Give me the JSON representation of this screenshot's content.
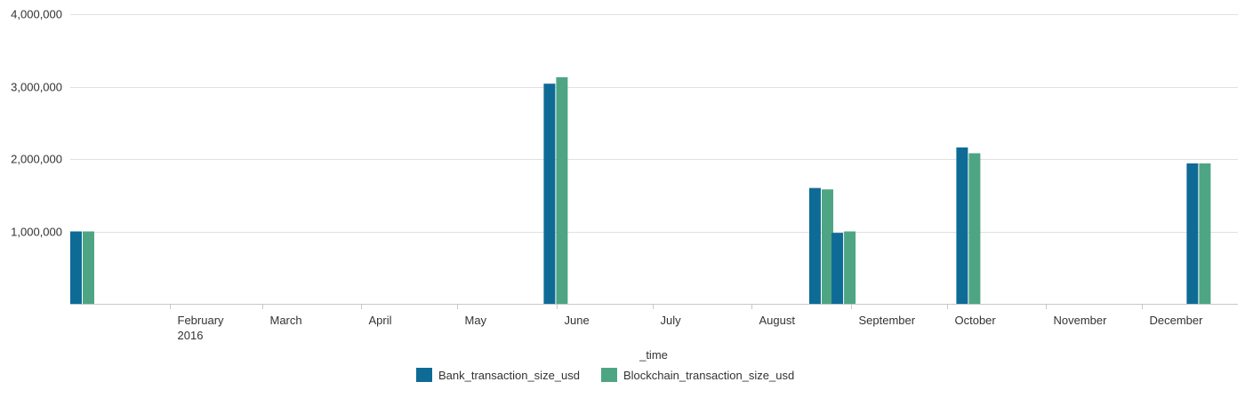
{
  "chart_data": {
    "type": "bar",
    "title": "",
    "xlabel": "_time",
    "ylabel": "",
    "ylim": [
      0,
      4000000
    ],
    "y_ticks": [
      {
        "value": 1000000,
        "label": "1,000,000"
      },
      {
        "value": 2000000,
        "label": "2,000,000"
      },
      {
        "value": 3000000,
        "label": "3,000,000"
      },
      {
        "value": 4000000,
        "label": "4,000,000"
      }
    ],
    "x_range": [
      "2016-01-01",
      "2016-12-31"
    ],
    "x_ticks": [
      {
        "date": "2016-02-01",
        "label": "February",
        "sublabel": "2016"
      },
      {
        "date": "2016-03-01",
        "label": "March"
      },
      {
        "date": "2016-04-01",
        "label": "April"
      },
      {
        "date": "2016-05-01",
        "label": "May"
      },
      {
        "date": "2016-06-01",
        "label": "June"
      },
      {
        "date": "2016-07-01",
        "label": "July"
      },
      {
        "date": "2016-08-01",
        "label": "August"
      },
      {
        "date": "2016-09-01",
        "label": "September"
      },
      {
        "date": "2016-10-01",
        "label": "October"
      },
      {
        "date": "2016-11-01",
        "label": "November"
      },
      {
        "date": "2016-12-01",
        "label": "December"
      }
    ],
    "dates": [
      "2016-01-01",
      "2016-05-28",
      "2016-08-19",
      "2016-08-26",
      "2016-10-04",
      "2016-12-15"
    ],
    "series": [
      {
        "name": "Bank_transaction_size_usd",
        "color": "#0e6b96",
        "values": [
          1000000,
          3040000,
          1600000,
          980000,
          2160000,
          1940000
        ]
      },
      {
        "name": "Blockchain_transaction_size_usd",
        "color": "#4ea584",
        "values": [
          1000000,
          3130000,
          1580000,
          1000000,
          2080000,
          1940000
        ]
      }
    ],
    "grid": true,
    "legend_position": "bottom-center"
  }
}
